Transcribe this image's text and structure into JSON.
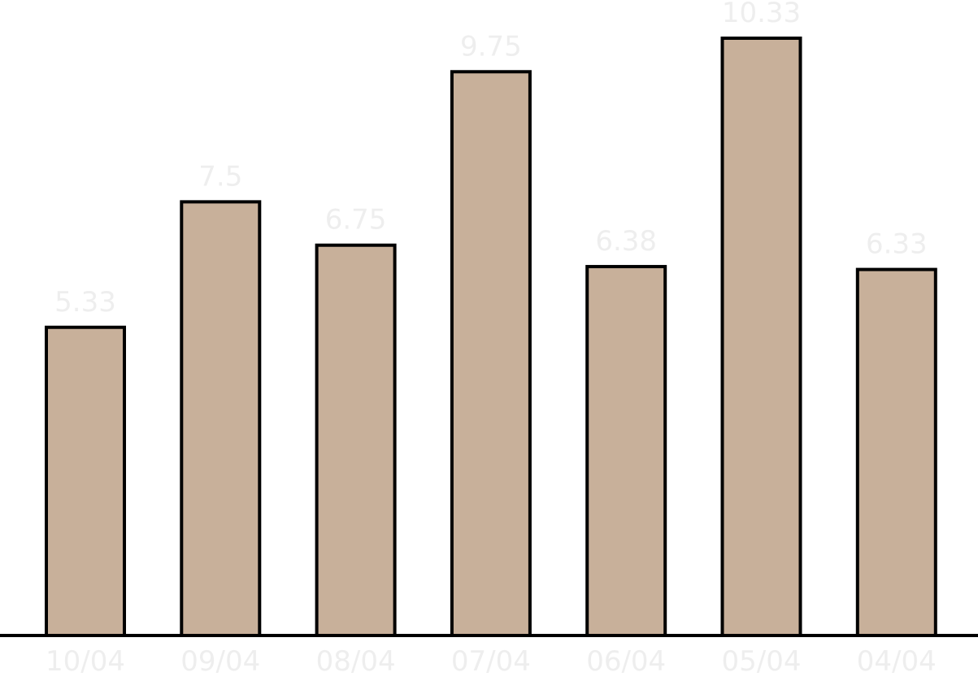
{
  "colors": {
    "bar_fill": "#c8b09a",
    "bar_stroke": "#000000",
    "label_color": "#eeeeee",
    "background": "#ffffff"
  },
  "chart_data": {
    "type": "bar",
    "categories": [
      "10/04",
      "09/04",
      "08/04",
      "07/04",
      "06/04",
      "05/04",
      "04/04"
    ],
    "values": [
      5.33,
      7.5,
      6.75,
      9.75,
      6.38,
      10.33,
      6.33
    ],
    "data_labels": [
      "5.33",
      "7.5",
      "6.75",
      "9.75",
      "6.38",
      "10.33",
      "6.33"
    ],
    "ylim": [
      0,
      10.33
    ],
    "grid": false,
    "legend": "none"
  }
}
